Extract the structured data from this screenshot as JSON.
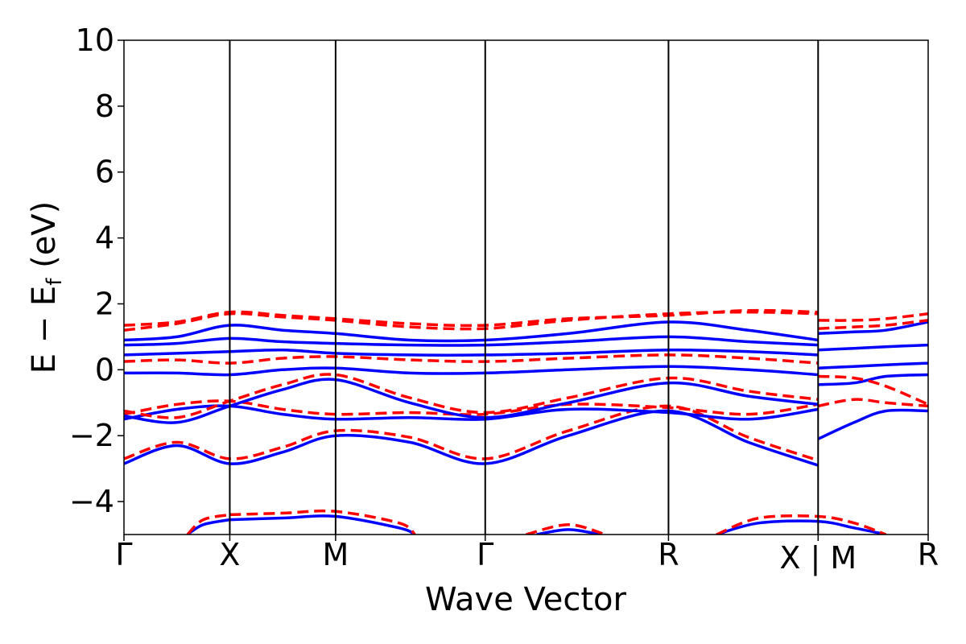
{
  "chart_data": {
    "type": "line",
    "title": "",
    "xlabel": "Wave Vector",
    "ylabel_main": "E − E",
    "ylabel_sub": "f",
    "ylabel_unit": " (eV)",
    "ylim": [
      -5,
      10
    ],
    "xlim": [
      0,
      7.6
    ],
    "yticks": [
      -4,
      -2,
      0,
      2,
      4,
      6,
      8,
      10
    ],
    "ytick_labels": [
      "−4",
      "−2",
      "0",
      "2",
      "4",
      "6",
      "8",
      "10"
    ],
    "kpoints": [
      {
        "label": "Γ",
        "x": 0.0
      },
      {
        "label": "X",
        "x": 1.0
      },
      {
        "label": "M",
        "x": 2.0
      },
      {
        "label": "Γ",
        "x": 3.414
      },
      {
        "label": "R",
        "x": 5.146
      },
      {
        "label": "X | M",
        "x": 6.56
      },
      {
        "label": "R",
        "x": 7.6
      }
    ],
    "vlines": [
      1.0,
      2.0,
      3.414,
      5.146,
      6.56
    ],
    "grid": false,
    "legend": "none",
    "colors": {
      "spin_up": "#0000ff",
      "spin_down": "#ff0000"
    },
    "series": [
      {
        "color": "#0000ff",
        "dash": "solid",
        "x": [
          0,
          0.5,
          1,
          1.5,
          2,
          2.7,
          3.414,
          4.2,
          5.146,
          5.9,
          6.56
        ],
        "y": [
          -2.85,
          -2.3,
          -2.85,
          -2.5,
          -2.0,
          -2.2,
          -2.85,
          -2.0,
          -1.25,
          -2.2,
          -2.9
        ]
      },
      {
        "color": "#ff0000",
        "dash": "dashed",
        "x": [
          0,
          0.5,
          1,
          1.5,
          2,
          2.7,
          3.414,
          4.2,
          5.146,
          5.9,
          6.56
        ],
        "y": [
          -2.7,
          -2.2,
          -2.7,
          -2.35,
          -1.85,
          -2.05,
          -2.7,
          -1.85,
          -1.1,
          -2.05,
          -2.75
        ]
      },
      {
        "color": "#0000ff",
        "dash": "solid",
        "x": [
          0,
          0.5,
          1,
          1.5,
          2,
          2.7,
          3.414,
          4.2,
          5.146,
          5.9,
          6.56
        ],
        "y": [
          -1.5,
          -1.2,
          -1.1,
          -1.35,
          -1.5,
          -1.45,
          -1.5,
          -1.2,
          -1.3,
          -1.5,
          -1.2
        ]
      },
      {
        "color": "#ff0000",
        "dash": "dashed",
        "x": [
          0,
          0.5,
          1,
          1.5,
          2,
          2.7,
          3.414,
          4.2,
          5.146,
          5.9,
          6.56
        ],
        "y": [
          -1.35,
          -1.05,
          -0.95,
          -1.2,
          -1.35,
          -1.3,
          -1.35,
          -1.05,
          -1.15,
          -1.35,
          -1.05
        ]
      },
      {
        "color": "#0000ff",
        "dash": "solid",
        "x": [
          0,
          0.5,
          1,
          1.5,
          2,
          2.7,
          3.414,
          4.2,
          5.146,
          5.9,
          6.56
        ],
        "y": [
          -1.4,
          -1.6,
          -1.1,
          -0.6,
          -0.3,
          -1.0,
          -1.45,
          -1.0,
          -0.4,
          -0.8,
          -1.05
        ]
      },
      {
        "color": "#ff0000",
        "dash": "dashed",
        "x": [
          0,
          0.5,
          1,
          1.5,
          2,
          2.7,
          3.414,
          4.2,
          5.146,
          5.9,
          6.56
        ],
        "y": [
          -1.25,
          -1.45,
          -0.95,
          -0.45,
          -0.15,
          -0.85,
          -1.3,
          -0.85,
          -0.25,
          -0.65,
          -0.9
        ]
      },
      {
        "color": "#0000ff",
        "dash": "solid",
        "x": [
          0,
          0.5,
          1,
          1.5,
          2,
          2.7,
          3.414,
          4.2,
          5.146,
          5.9,
          6.56
        ],
        "y": [
          -0.1,
          -0.1,
          -0.15,
          0.0,
          0.05,
          -0.1,
          -0.1,
          0.0,
          0.1,
          0.0,
          -0.15
        ]
      },
      {
        "color": "#ff0000",
        "dash": "dashed",
        "x": [
          0,
          0.5,
          1,
          1.5,
          2,
          2.7,
          3.414,
          4.2,
          5.146,
          5.9,
          6.56
        ],
        "y": [
          0.25,
          0.3,
          0.2,
          0.35,
          0.4,
          0.3,
          0.25,
          0.35,
          0.45,
          0.35,
          0.2
        ]
      },
      {
        "color": "#0000ff",
        "dash": "solid",
        "x": [
          0,
          0.5,
          1,
          1.5,
          2,
          2.7,
          3.414,
          4.2,
          5.146,
          5.9,
          6.56
        ],
        "y": [
          0.45,
          0.5,
          0.55,
          0.6,
          0.5,
          0.45,
          0.45,
          0.5,
          0.6,
          0.55,
          0.45
        ]
      },
      {
        "color": "#0000ff",
        "dash": "solid",
        "x": [
          0,
          0.5,
          1,
          1.5,
          2,
          2.7,
          3.414,
          4.2,
          5.146,
          5.9,
          6.56
        ],
        "y": [
          0.75,
          0.8,
          0.95,
          0.85,
          0.8,
          0.75,
          0.75,
          0.85,
          1.0,
          0.85,
          0.75
        ]
      },
      {
        "color": "#0000ff",
        "dash": "solid",
        "x": [
          0,
          0.5,
          1,
          1.5,
          2,
          2.7,
          3.414,
          4.2,
          5.146,
          5.9,
          6.56
        ],
        "y": [
          0.9,
          1.0,
          1.35,
          1.2,
          1.1,
          0.9,
          0.9,
          1.1,
          1.45,
          1.2,
          0.9
        ]
      },
      {
        "color": "#ff0000",
        "dash": "dashed",
        "x": [
          0,
          0.5,
          1,
          1.5,
          2,
          2.7,
          3.414,
          4.2,
          5.146,
          5.9,
          6.56
        ],
        "y": [
          1.2,
          1.4,
          1.7,
          1.6,
          1.5,
          1.3,
          1.25,
          1.5,
          1.7,
          1.75,
          1.7
        ]
      },
      {
        "color": "#ff0000",
        "dash": "dashed",
        "x": [
          0,
          0.5,
          1,
          1.5,
          2,
          2.7,
          3.414,
          4.2,
          5.146,
          5.9,
          6.56
        ],
        "y": [
          1.35,
          1.45,
          1.75,
          1.65,
          1.55,
          1.4,
          1.35,
          1.55,
          1.65,
          1.8,
          1.75
        ]
      },
      {
        "color": "#0000ff",
        "dash": "solid",
        "x": [
          1,
          1.5,
          2,
          2.6,
          2.75
        ],
        "y": [
          -4.55,
          -4.5,
          -4.45,
          -4.8,
          -5.0
        ]
      },
      {
        "color": "#ff0000",
        "dash": "dashed",
        "x": [
          1,
          1.5,
          2,
          2.6,
          2.75
        ],
        "y": [
          -4.4,
          -4.35,
          -4.3,
          -4.65,
          -5.0
        ]
      },
      {
        "color": "#0000ff",
        "dash": "solid",
        "x": [
          0.6,
          0.75,
          1.0
        ],
        "y": [
          -5.0,
          -4.7,
          -4.55
        ]
      },
      {
        "color": "#ff0000",
        "dash": "dashed",
        "x": [
          0.6,
          0.75,
          1.0
        ],
        "y": [
          -5.0,
          -4.55,
          -4.4
        ]
      },
      {
        "color": "#0000ff",
        "dash": "solid",
        "x": [
          3.9,
          4.2,
          4.5
        ],
        "y": [
          -5.0,
          -4.85,
          -5.0
        ]
      },
      {
        "color": "#ff0000",
        "dash": "dashed",
        "x": [
          3.8,
          4.2,
          4.55
        ],
        "y": [
          -5.0,
          -4.7,
          -5.0
        ]
      },
      {
        "color": "#0000ff",
        "dash": "solid",
        "x": [
          5.6,
          6.0,
          6.56,
          6.9,
          7.2
        ],
        "y": [
          -5.0,
          -4.65,
          -4.6,
          -4.8,
          -5.0
        ]
      },
      {
        "color": "#ff0000",
        "dash": "dashed",
        "x": [
          5.6,
          6.0,
          6.56,
          6.9,
          7.2
        ],
        "y": [
          -5.0,
          -4.5,
          -4.45,
          -4.65,
          -5.0
        ]
      },
      {
        "color": "#0000ff",
        "dash": "solid",
        "x": [
          6.56,
          6.9,
          7.2,
          7.6
        ],
        "y": [
          -2.1,
          -1.6,
          -1.25,
          -1.25
        ]
      },
      {
        "color": "#ff0000",
        "dash": "dashed",
        "x": [
          6.56,
          6.9,
          7.2,
          7.6
        ],
        "y": [
          -1.1,
          -0.9,
          -1.0,
          -1.1
        ]
      },
      {
        "color": "#0000ff",
        "dash": "solid",
        "x": [
          6.56,
          6.9,
          7.2,
          7.6
        ],
        "y": [
          -0.45,
          -0.4,
          -0.2,
          -0.15
        ]
      },
      {
        "color": "#ff0000",
        "dash": "dashed",
        "x": [
          6.56,
          6.9,
          7.2,
          7.6
        ],
        "y": [
          -0.2,
          -0.25,
          -0.5,
          -1.05
        ]
      },
      {
        "color": "#0000ff",
        "dash": "solid",
        "x": [
          6.56,
          6.9,
          7.2,
          7.6
        ],
        "y": [
          0.05,
          0.1,
          0.15,
          0.2
        ]
      },
      {
        "color": "#0000ff",
        "dash": "solid",
        "x": [
          6.56,
          6.9,
          7.2,
          7.6
        ],
        "y": [
          0.6,
          0.65,
          0.7,
          0.75
        ]
      },
      {
        "color": "#0000ff",
        "dash": "solid",
        "x": [
          6.56,
          6.9,
          7.2,
          7.6
        ],
        "y": [
          1.1,
          1.15,
          1.2,
          1.45
        ]
      },
      {
        "color": "#ff0000",
        "dash": "dashed",
        "x": [
          6.56,
          6.9,
          7.2,
          7.6
        ],
        "y": [
          1.5,
          1.5,
          1.55,
          1.7
        ]
      },
      {
        "color": "#ff0000",
        "dash": "dashed",
        "x": [
          6.56,
          6.9,
          7.2,
          7.6
        ],
        "y": [
          1.25,
          1.3,
          1.35,
          1.5
        ]
      }
    ]
  }
}
